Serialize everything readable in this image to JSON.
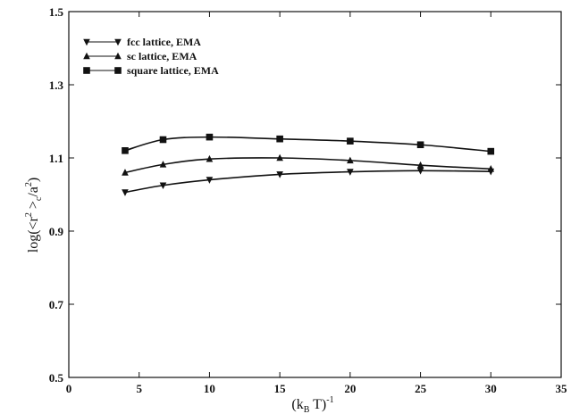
{
  "chart_data": {
    "type": "line",
    "title": "",
    "xlabel": {
      "main": "(k",
      "sub": "B",
      "mid": " T)",
      "sup": "-1"
    },
    "ylabel": {
      "pre": "log(<r",
      "sup1": "2",
      "mid": " >",
      "sub": "c",
      "mid2": "/a",
      "sup2": "2",
      "post": ")"
    },
    "xlim": [
      0,
      35
    ],
    "ylim": [
      0.5,
      1.5
    ],
    "xticks": [
      0,
      5,
      10,
      15,
      20,
      25,
      30,
      35
    ],
    "yticks": [
      0.5,
      0.7,
      0.9,
      1.1,
      1.3,
      1.5
    ],
    "ytick_labels": [
      "0.5",
      "0.7",
      "0.9",
      "1.1",
      "1.3",
      "1.5"
    ],
    "grid": false,
    "legend_position": "top-left",
    "series": [
      {
        "name": "fcc lattice, EMA",
        "marker": "triangle-down",
        "x": [
          4,
          6.7,
          10,
          15,
          20,
          25,
          30
        ],
        "y": [
          1.006,
          1.025,
          1.04,
          1.055,
          1.062,
          1.065,
          1.063
        ]
      },
      {
        "name": "sc lattice, EMA",
        "marker": "triangle-up",
        "x": [
          4,
          6.7,
          10,
          15,
          20,
          25,
          30
        ],
        "y": [
          1.06,
          1.082,
          1.097,
          1.1,
          1.093,
          1.08,
          1.07
        ]
      },
      {
        "name": "square lattice, EMA",
        "marker": "square",
        "x": [
          4,
          6.7,
          10,
          15,
          20,
          25,
          30
        ],
        "y": [
          1.12,
          1.15,
          1.157,
          1.152,
          1.146,
          1.136,
          1.118
        ]
      }
    ]
  }
}
